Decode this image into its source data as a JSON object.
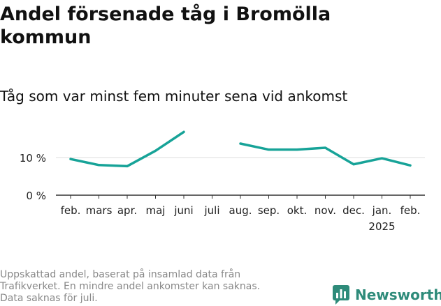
{
  "title": "Andel försenade tåg i Bromölla kommun",
  "subtitle": "Tåg som var minst fem minuter sena vid ankomst",
  "footnote": [
    "Uppskattad andel, baserat på insamlad data från",
    "Trafikverket. En mindre andel ankomster kan saknas.",
    "Data saknas för juli."
  ],
  "brand": {
    "name": "Newsworthy",
    "icon": "newsworthy-logo-icon"
  },
  "colors": {
    "line": "#17a398",
    "grid": "#dddddd",
    "axis": "#333333",
    "brand": "#2e8b7a"
  },
  "chart_data": {
    "type": "line",
    "categories": [
      "feb.",
      "mars",
      "apr.",
      "maj",
      "juni",
      "juli",
      "aug.",
      "sep.",
      "okt.",
      "nov.",
      "dec.",
      "jan.",
      "feb."
    ],
    "year_label": "2025",
    "year_label_under": "jan.",
    "values": [
      9.6,
      8.0,
      7.7,
      11.8,
      16.8,
      null,
      13.7,
      12.1,
      12.1,
      12.6,
      8.2,
      9.8,
      7.9
    ],
    "y_ticks": [
      0,
      10
    ],
    "y_tick_labels": [
      "0 %",
      "10 %"
    ],
    "ylim": [
      0,
      20
    ],
    "grid": true,
    "xlabel": "",
    "ylabel": ""
  }
}
